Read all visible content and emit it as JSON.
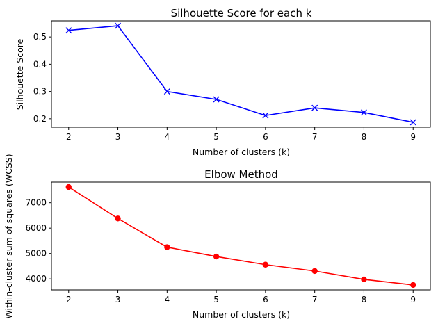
{
  "chart_data": [
    {
      "type": "line",
      "title": "Silhouette Score for each k",
      "xlabel": "Number of clusters (k)",
      "ylabel": "Silhouette Score",
      "x": [
        2,
        3,
        4,
        5,
        6,
        7,
        8,
        9
      ],
      "series": [
        {
          "values": [
            0.524,
            0.541,
            0.3,
            0.271,
            0.212,
            0.24,
            0.223,
            0.187
          ],
          "color": "#0000ff",
          "marker": "x"
        }
      ],
      "xlim": [
        1.65,
        9.35
      ],
      "ylim": [
        0.169,
        0.559
      ],
      "xticks": [
        2,
        3,
        4,
        5,
        6,
        7,
        8,
        9
      ],
      "xtick_labels": [
        "2",
        "3",
        "4",
        "5",
        "6",
        "7",
        "8",
        "9"
      ],
      "yticks": [
        0.2,
        0.3,
        0.4,
        0.5
      ],
      "ytick_labels": [
        "0.2",
        "0.3",
        "0.4",
        "0.5"
      ],
      "grid": false,
      "legend": "none"
    },
    {
      "type": "line",
      "title": "Elbow Method",
      "xlabel": "Number of clusters (k)",
      "ylabel": "Within-cluster sum of squares (WCSS)",
      "x": [
        2,
        3,
        4,
        5,
        6,
        7,
        8,
        9
      ],
      "series": [
        {
          "values": [
            7620,
            6380,
            5250,
            4880,
            4560,
            4310,
            3980,
            3760
          ],
          "color": "#ff0000",
          "marker": "o"
        }
      ],
      "xlim": [
        1.65,
        9.35
      ],
      "ylim": [
        3567,
        7813
      ],
      "xticks": [
        2,
        3,
        4,
        5,
        6,
        7,
        8,
        9
      ],
      "xtick_labels": [
        "2",
        "3",
        "4",
        "5",
        "6",
        "7",
        "8",
        "9"
      ],
      "yticks": [
        4000,
        5000,
        6000,
        7000
      ],
      "ytick_labels": [
        "4000",
        "5000",
        "6000",
        "7000"
      ],
      "grid": false,
      "legend": "none"
    }
  ]
}
